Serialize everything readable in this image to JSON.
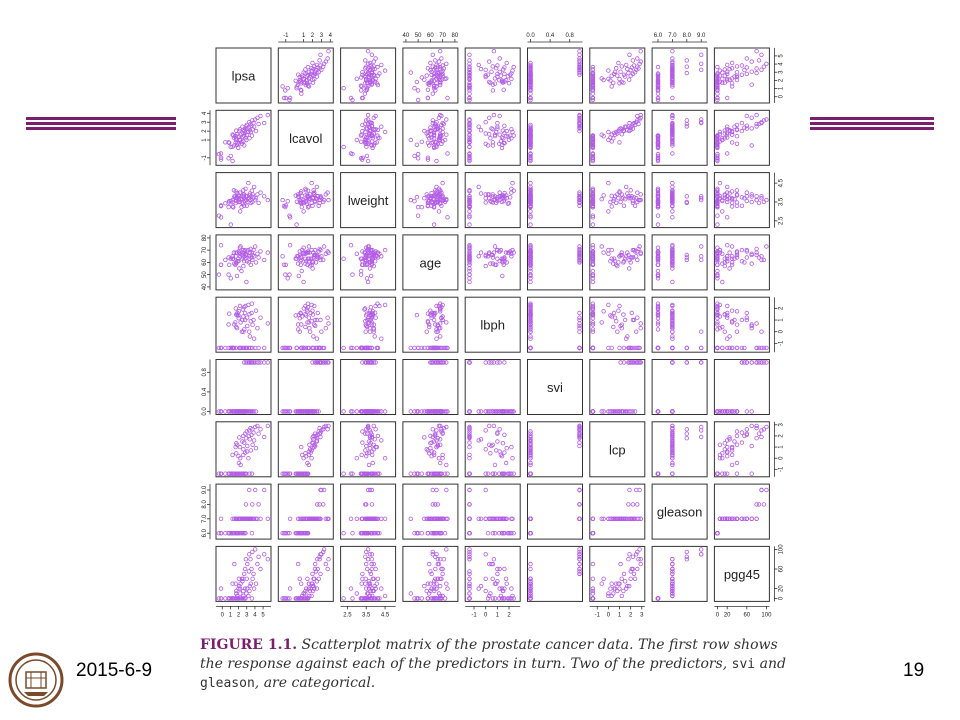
{
  "footer": {
    "date": "2015-6-9",
    "page": "19"
  },
  "caption": {
    "fig_label": "FIGURE 1.1.",
    "part1": " Scatterplot matrix of the prostate cancer data. The first row shows the response against each of the predictors in turn. Two of the predictors, ",
    "code1": "svi",
    "part2": " and ",
    "code2": "gleason",
    "part3": ", are categorical."
  },
  "colors": {
    "point": "#b35ce6",
    "rule": "#7a1f6e",
    "frame": "#333333"
  },
  "chart_data": {
    "type": "scatter",
    "variables": [
      "lpsa",
      "lcavol",
      "lweight",
      "age",
      "lbph",
      "svi",
      "lcp",
      "gleason",
      "pgg45"
    ],
    "ranges": {
      "lpsa": [
        -0.4,
        5.6
      ],
      "lcavol": [
        -1.5,
        4.0
      ],
      "lweight": [
        2.3,
        4.9
      ],
      "age": [
        40,
        80
      ],
      "lbph": [
        -1.5,
        2.7
      ],
      "svi": [
        0,
        1
      ],
      "lcp": [
        -1.4,
        3.0
      ],
      "gleason": [
        5.8,
        9.2
      ],
      "pgg45": [
        0,
        100
      ]
    },
    "tick_labels": {
      "lpsa": [
        "0",
        "1",
        "2",
        "3",
        "4",
        "5"
      ],
      "lcavol": [
        "-1",
        "1",
        "2",
        "3",
        "4"
      ],
      "lweight": [
        "2.5",
        "3.5",
        "4.5"
      ],
      "age": [
        "40",
        "50",
        "60",
        "70",
        "80"
      ],
      "lbph": [
        "-1",
        "0",
        "1",
        "2"
      ],
      "svi": [
        "0.0",
        "0.4",
        "0.8"
      ],
      "lcp": [
        "-1",
        "0",
        "1",
        "2",
        "3"
      ],
      "gleason": [
        "6.0",
        "7.0",
        "8.0",
        "9.0"
      ],
      "pgg45": [
        "0",
        "20",
        "60",
        "100"
      ]
    },
    "top_axis_labels": [
      "-1",
      "1",
      "2",
      "3",
      "4",
      "40",
      "50",
      "60",
      "70",
      "80",
      "0.0",
      "0.4",
      "0.8",
      "6.0",
      "7.0",
      "8.0",
      "9.0"
    ],
    "right_axis_labels": [
      "0",
      "1",
      "2",
      "3",
      "4",
      "5",
      "2.5",
      "3.5",
      "4.5",
      "-1",
      "0",
      "1",
      "2",
      "-1",
      "0",
      "1",
      "2",
      "3",
      "0",
      "20",
      "60",
      "100"
    ],
    "left_axis_labels": [
      "-1",
      "1",
      "2",
      "3",
      "4",
      "40",
      "50",
      "60",
      "70",
      "80",
      "0.0",
      "0.4",
      "0.8",
      "6.0",
      "7.0",
      "8.0",
      "9.0"
    ],
    "bottom_axis_labels": [
      "0",
      "1",
      "2",
      "3",
      "4",
      "5",
      "2.5",
      "3.5",
      "4.5",
      "-1",
      "0",
      "1",
      "2",
      "-1",
      "0",
      "1",
      "2",
      "3",
      "0",
      "20",
      "60",
      "100"
    ],
    "grid": false,
    "points": [
      {
        "lcavol": -0.58,
        "lweight": 2.77,
        "age": 50,
        "lbph": -1.39,
        "svi": 0,
        "lcp": -1.39,
        "gleason": 6,
        "pgg45": 0,
        "lpsa": -0.43
      },
      {
        "lcavol": -0.99,
        "lweight": 3.32,
        "age": 58,
        "lbph": -1.39,
        "svi": 0,
        "lcp": -1.39,
        "gleason": 6,
        "pgg45": 0,
        "lpsa": -0.16
      },
      {
        "lcavol": -0.51,
        "lweight": 2.69,
        "age": 74,
        "lbph": -1.39,
        "svi": 0,
        "lcp": -1.39,
        "gleason": 7,
        "pgg45": 20,
        "lpsa": -0.16
      },
      {
        "lcavol": -1.2,
        "lweight": 3.28,
        "age": 58,
        "lbph": -1.39,
        "svi": 0,
        "lcp": -1.39,
        "gleason": 6,
        "pgg45": 0,
        "lpsa": -0.16
      },
      {
        "lcavol": 0.75,
        "lweight": 3.43,
        "age": 62,
        "lbph": -1.39,
        "svi": 0,
        "lcp": -1.39,
        "gleason": 6,
        "pgg45": 0,
        "lpsa": 0.37
      },
      {
        "lcavol": -1.05,
        "lweight": 3.23,
        "age": 50,
        "lbph": -1.39,
        "svi": 0,
        "lcp": -1.39,
        "gleason": 6,
        "pgg45": 0,
        "lpsa": 0.77
      },
      {
        "lcavol": 0.74,
        "lweight": 3.47,
        "age": 64,
        "lbph": 0.62,
        "svi": 0,
        "lcp": -1.39,
        "gleason": 6,
        "pgg45": 0,
        "lpsa": 0.77
      },
      {
        "lcavol": 0.69,
        "lweight": 3.54,
        "age": 58,
        "lbph": 1.54,
        "svi": 0,
        "lcp": -1.39,
        "gleason": 6,
        "pgg45": 0,
        "lpsa": 0.85
      },
      {
        "lcavol": -0.78,
        "lweight": 3.54,
        "age": 47,
        "lbph": -1.39,
        "svi": 0,
        "lcp": -1.39,
        "gleason": 6,
        "pgg45": 0,
        "lpsa": 1.05
      },
      {
        "lcavol": 0.22,
        "lweight": 2.21,
        "age": 63,
        "lbph": -1.39,
        "svi": 0,
        "lcp": -1.39,
        "gleason": 6,
        "pgg45": 0,
        "lpsa": 1.05
      },
      {
        "lcavol": 0.25,
        "lweight": 3.51,
        "age": 65,
        "lbph": -1.39,
        "svi": 0,
        "lcp": -1.39,
        "gleason": 6,
        "pgg45": 0,
        "lpsa": 1.27
      },
      {
        "lcavol": -1.35,
        "lweight": 3.6,
        "age": 65,
        "lbph": -1.39,
        "svi": 0,
        "lcp": -1.39,
        "gleason": 6,
        "pgg45": 0,
        "lpsa": 1.27
      },
      {
        "lcavol": 1.61,
        "lweight": 3.26,
        "age": 63,
        "lbph": -1.39,
        "svi": 0,
        "lcp": 0.3,
        "gleason": 7,
        "pgg45": 30,
        "lpsa": 1.27
      },
      {
        "lcavol": 1.51,
        "lweight": 3.22,
        "age": 63,
        "lbph": -1.39,
        "svi": 0,
        "lcp": -1.39,
        "gleason": 6,
        "pgg45": 0,
        "lpsa": 1.35
      },
      {
        "lcavol": 1.26,
        "lweight": 4.12,
        "age": 68,
        "lbph": -1.39,
        "svi": 0,
        "lcp": -1.39,
        "gleason": 6,
        "pgg45": 0,
        "lpsa": 1.42
      },
      {
        "lcavol": 0.39,
        "lweight": 3.79,
        "age": 59,
        "lbph": 0.62,
        "svi": 0,
        "lcp": -1.39,
        "gleason": 7,
        "pgg45": 70,
        "lpsa": 1.47
      },
      {
        "lcavol": 1.44,
        "lweight": 3.79,
        "age": 58,
        "lbph": 0.8,
        "svi": 0,
        "lcp": -1.39,
        "gleason": 6,
        "pgg45": 0,
        "lpsa": 1.6
      },
      {
        "lcavol": 0.73,
        "lweight": 4.06,
        "age": 65,
        "lbph": -1.39,
        "svi": 0,
        "lcp": 1.0,
        "gleason": 7,
        "pgg45": 30,
        "lpsa": 1.64
      },
      {
        "lcavol": 1.02,
        "lweight": 3.44,
        "age": 68,
        "lbph": 2.0,
        "svi": 0,
        "lcp": -1.39,
        "gleason": 6,
        "pgg45": 0,
        "lpsa": 1.66
      },
      {
        "lcavol": 1.21,
        "lweight": 3.55,
        "age": 59,
        "lbph": 0.4,
        "svi": 0,
        "lcp": 0.44,
        "gleason": 7,
        "pgg45": 10,
        "lpsa": 1.7
      },
      {
        "lcavol": 2.06,
        "lweight": 3.73,
        "age": 60,
        "lbph": 1.47,
        "svi": 0,
        "lcp": 1.35,
        "gleason": 7,
        "pgg45": 15,
        "lpsa": 1.72
      },
      {
        "lcavol": 0.46,
        "lweight": 3.76,
        "age": 49,
        "lbph": 1.42,
        "svi": 0,
        "lcp": -1.39,
        "gleason": 6,
        "pgg45": 0,
        "lpsa": 1.8
      },
      {
        "lcavol": 1.65,
        "lweight": 3.69,
        "age": 68,
        "lbph": 0.3,
        "svi": 0,
        "lcp": 1.2,
        "gleason": 7,
        "pgg45": 5,
        "lpsa": 1.82
      },
      {
        "lcavol": 0.65,
        "lweight": 3.97,
        "age": 61,
        "lbph": 1.62,
        "svi": 0,
        "lcp": -1.39,
        "gleason": 6,
        "pgg45": 0,
        "lpsa": 1.85
      },
      {
        "lcavol": 0.12,
        "lweight": 3.84,
        "age": 63,
        "lbph": 1.4,
        "svi": 0,
        "lcp": -1.39,
        "gleason": 6,
        "pgg45": 0,
        "lpsa": 1.95
      },
      {
        "lcavol": 1.3,
        "lweight": 3.5,
        "age": 61,
        "lbph": 1.4,
        "svi": 0,
        "lcp": 0.18,
        "gleason": 7,
        "pgg45": 20,
        "lpsa": 1.99
      },
      {
        "lcavol": 0.58,
        "lweight": 3.6,
        "age": 69,
        "lbph": 1.16,
        "svi": 0,
        "lcp": -1.39,
        "gleason": 6,
        "pgg45": 0,
        "lpsa": 2.01
      },
      {
        "lcavol": 1.43,
        "lweight": 3.85,
        "age": 68,
        "lbph": 1.75,
        "svi": 0,
        "lcp": -0.43,
        "gleason": 7,
        "pgg45": 40,
        "lpsa": 2.04
      },
      {
        "lcavol": 2.01,
        "lweight": 3.7,
        "age": 55,
        "lbph": -1.39,
        "svi": 0,
        "lcp": 1.87,
        "gleason": 7,
        "pgg45": 25,
        "lpsa": 2.09
      },
      {
        "lcavol": 1.0,
        "lweight": 3.5,
        "age": 72,
        "lbph": -1.39,
        "svi": 0,
        "lcp": -1.39,
        "gleason": 6,
        "pgg45": 0,
        "lpsa": 2.16
      },
      {
        "lcavol": 2.2,
        "lweight": 4.0,
        "age": 65,
        "lbph": 2.2,
        "svi": 0,
        "lcp": 1.0,
        "gleason": 7,
        "pgg45": 20,
        "lpsa": 2.17
      },
      {
        "lcavol": 1.0,
        "lweight": 3.0,
        "age": 67,
        "lbph": -1.39,
        "svi": 0,
        "lcp": 0.0,
        "gleason": 7,
        "pgg45": 10,
        "lpsa": 2.2
      },
      {
        "lcavol": 1.6,
        "lweight": 3.65,
        "age": 73,
        "lbph": 0.8,
        "svi": 0,
        "lcp": -0.6,
        "gleason": 7,
        "pgg45": 30,
        "lpsa": 2.24
      },
      {
        "lcavol": 0.8,
        "lweight": 3.23,
        "age": 53,
        "lbph": -1.39,
        "svi": 0,
        "lcp": -1.39,
        "gleason": 6,
        "pgg45": 0,
        "lpsa": 2.35
      },
      {
        "lcavol": 0.58,
        "lweight": 3.47,
        "age": 66,
        "lbph": 0.0,
        "svi": 0,
        "lcp": -1.39,
        "gleason": 7,
        "pgg45": 40,
        "lpsa": 2.4
      },
      {
        "lcavol": 2.5,
        "lweight": 3.65,
        "age": 63,
        "lbph": 1.0,
        "svi": 0,
        "lcp": 1.5,
        "gleason": 7,
        "pgg45": 35,
        "lpsa": 2.46
      },
      {
        "lcavol": 1.37,
        "lweight": 3.41,
        "age": 68,
        "lbph": 1.9,
        "svi": 0,
        "lcp": -1.39,
        "gleason": 6,
        "pgg45": 0,
        "lpsa": 2.52
      },
      {
        "lcavol": 0.85,
        "lweight": 3.82,
        "age": 70,
        "lbph": 1.3,
        "svi": 0,
        "lcp": 0.3,
        "gleason": 7,
        "pgg45": 5,
        "lpsa": 2.57
      },
      {
        "lcavol": 2.13,
        "lweight": 4.12,
        "age": 64,
        "lbph": -1.39,
        "svi": 0,
        "lcp": 2.0,
        "gleason": 7,
        "pgg45": 40,
        "lpsa": 2.58
      },
      {
        "lcavol": 1.73,
        "lweight": 3.9,
        "age": 57,
        "lbph": 0.0,
        "svi": 0,
        "lcp": 0.8,
        "gleason": 7,
        "pgg45": 15,
        "lpsa": 2.59
      },
      {
        "lcavol": 1.49,
        "lweight": 3.75,
        "age": 69,
        "lbph": 2.1,
        "svi": 0,
        "lcp": -1.39,
        "gleason": 6,
        "pgg45": 0,
        "lpsa": 2.68
      },
      {
        "lcavol": 2.0,
        "lweight": 3.3,
        "age": 61,
        "lbph": -1.39,
        "svi": 1,
        "lcp": 1.4,
        "gleason": 7,
        "pgg45": 50,
        "lpsa": 2.69
      },
      {
        "lcavol": 0.4,
        "lweight": 3.9,
        "age": 65,
        "lbph": 0.2,
        "svi": 0,
        "lcp": -1.39,
        "gleason": 6,
        "pgg45": 0,
        "lpsa": 2.7
      },
      {
        "lcavol": 2.28,
        "lweight": 3.55,
        "age": 70,
        "lbph": 1.0,
        "svi": 0,
        "lcp": 2.2,
        "gleason": 7,
        "pgg45": 60,
        "lpsa": 2.79
      },
      {
        "lcavol": 1.8,
        "lweight": 3.65,
        "age": 63,
        "lbph": 1.6,
        "svi": 0,
        "lcp": 0.5,
        "gleason": 7,
        "pgg45": 20,
        "lpsa": 2.8
      },
      {
        "lcavol": 1.2,
        "lweight": 4.2,
        "age": 67,
        "lbph": 2.2,
        "svi": 0,
        "lcp": -1.39,
        "gleason": 6,
        "pgg45": 0,
        "lpsa": 2.85
      },
      {
        "lcavol": 2.53,
        "lweight": 3.8,
        "age": 66,
        "lbph": -1.39,
        "svi": 1,
        "lcp": 1.8,
        "gleason": 8,
        "pgg45": 80,
        "lpsa": 2.9
      },
      {
        "lcavol": 1.0,
        "lweight": 3.6,
        "age": 44,
        "lbph": -1.39,
        "svi": 0,
        "lcp": -1.39,
        "gleason": 7,
        "pgg45": 10,
        "lpsa": 2.96
      },
      {
        "lcavol": 2.7,
        "lweight": 3.3,
        "age": 69,
        "lbph": -1.39,
        "svi": 0,
        "lcp": 2.4,
        "gleason": 7,
        "pgg45": 40,
        "lpsa": 3.01
      },
      {
        "lcavol": 1.6,
        "lweight": 3.8,
        "age": 61,
        "lbph": 1.2,
        "svi": 0,
        "lcp": 0.6,
        "gleason": 7,
        "pgg45": 20,
        "lpsa": 3.04
      },
      {
        "lcavol": 2.3,
        "lweight": 3.5,
        "age": 66,
        "lbph": 0.5,
        "svi": 1,
        "lcp": 1.1,
        "gleason": 7,
        "pgg45": 70,
        "lpsa": 3.06
      },
      {
        "lcavol": 1.9,
        "lweight": 4.5,
        "age": 70,
        "lbph": 2.3,
        "svi": 0,
        "lcp": 0.0,
        "gleason": 7,
        "pgg45": 5,
        "lpsa": 3.2
      },
      {
        "lcavol": 2.4,
        "lweight": 3.7,
        "age": 60,
        "lbph": -1.39,
        "svi": 1,
        "lcp": 2.0,
        "gleason": 7,
        "pgg45": 55,
        "lpsa": 3.26
      },
      {
        "lcavol": 3.0,
        "lweight": 3.7,
        "age": 65,
        "lbph": 0.0,
        "svi": 1,
        "lcp": 2.5,
        "gleason": 9,
        "pgg45": 90,
        "lpsa": 3.3
      },
      {
        "lcavol": 1.2,
        "lweight": 3.85,
        "age": 63,
        "lbph": 1.5,
        "svi": 0,
        "lcp": -1.39,
        "gleason": 7,
        "pgg45": 15,
        "lpsa": 3.34
      },
      {
        "lcavol": 2.1,
        "lweight": 3.95,
        "age": 68,
        "lbph": -0.4,
        "svi": 0,
        "lcp": 1.7,
        "gleason": 7,
        "pgg45": 25,
        "lpsa": 3.38
      },
      {
        "lcavol": 2.8,
        "lweight": 3.6,
        "age": 71,
        "lbph": -1.39,
        "svi": 1,
        "lcp": 2.7,
        "gleason": 7,
        "pgg45": 80,
        "lpsa": 3.46
      },
      {
        "lcavol": 1.9,
        "lweight": 3.45,
        "age": 58,
        "lbph": 0.9,
        "svi": 0,
        "lcp": 0.7,
        "gleason": 7,
        "pgg45": 30,
        "lpsa": 3.5
      },
      {
        "lcavol": 2.6,
        "lweight": 3.8,
        "age": 64,
        "lbph": 1.6,
        "svi": 1,
        "lcp": 2.1,
        "gleason": 7,
        "pgg45": 60,
        "lpsa": 3.58
      },
      {
        "lcavol": 1.5,
        "lweight": 4.1,
        "age": 68,
        "lbph": 2.4,
        "svi": 0,
        "lcp": -1.39,
        "gleason": 6,
        "pgg45": 0,
        "lpsa": 3.63
      },
      {
        "lcavol": 3.2,
        "lweight": 3.5,
        "age": 62,
        "lbph": -1.39,
        "svi": 1,
        "lcp": 2.6,
        "gleason": 8,
        "pgg45": 95,
        "lpsa": 3.68
      },
      {
        "lcavol": 2.2,
        "lweight": 3.9,
        "age": 66,
        "lbph": 0.6,
        "svi": 0,
        "lcp": 1.2,
        "gleason": 7,
        "pgg45": 40,
        "lpsa": 3.71
      },
      {
        "lcavol": 2.9,
        "lweight": 3.75,
        "age": 70,
        "lbph": 1.0,
        "svi": 1,
        "lcp": 2.3,
        "gleason": 7,
        "pgg45": 50,
        "lpsa": 3.82
      },
      {
        "lcavol": 2.5,
        "lweight": 4.3,
        "age": 65,
        "lbph": -0.6,
        "svi": 0,
        "lcp": 1.6,
        "gleason": 7,
        "pgg45": 20,
        "lpsa": 3.9
      },
      {
        "lcavol": 3.3,
        "lweight": 3.6,
        "age": 73,
        "lbph": -1.39,
        "svi": 1,
        "lcp": 2.8,
        "gleason": 9,
        "pgg45": 100,
        "lpsa": 4.03
      },
      {
        "lcavol": 2.0,
        "lweight": 3.7,
        "age": 60,
        "lbph": 1.8,
        "svi": 0,
        "lcp": 0.9,
        "gleason": 7,
        "pgg45": 30,
        "lpsa": 4.13
      },
      {
        "lcavol": 3.5,
        "lweight": 3.9,
        "age": 67,
        "lbph": 0.3,
        "svi": 1,
        "lcp": 2.9,
        "gleason": 7,
        "pgg45": 70,
        "lpsa": 4.3
      },
      {
        "lcavol": 2.8,
        "lweight": 3.45,
        "age": 64,
        "lbph": -1.39,
        "svi": 1,
        "lcp": 2.2,
        "gleason": 8,
        "pgg45": 85,
        "lpsa": 4.45
      },
      {
        "lcavol": 3.7,
        "lweight": 4.0,
        "age": 69,
        "lbph": 1.2,
        "svi": 1,
        "lcp": 2.6,
        "gleason": 7,
        "pgg45": 60,
        "lpsa": 4.68
      },
      {
        "lcavol": 2.9,
        "lweight": 3.8,
        "age": 62,
        "lbph": -1.39,
        "svi": 1,
        "lcp": 1.9,
        "gleason": 9,
        "pgg45": 90,
        "lpsa": 5.14
      },
      {
        "lcavol": 3.8,
        "lweight": 3.6,
        "age": 68,
        "lbph": 0.7,
        "svi": 1,
        "lcp": 2.9,
        "gleason": 7,
        "pgg45": 80,
        "lpsa": 5.58
      }
    ]
  }
}
